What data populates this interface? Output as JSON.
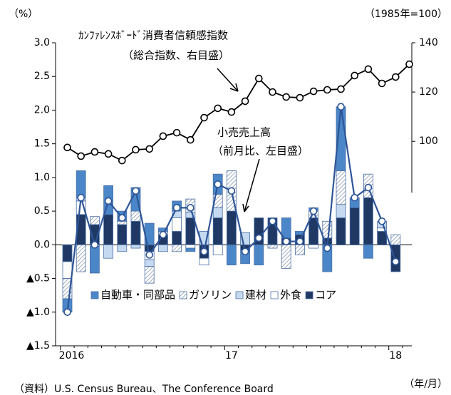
{
  "chart_data": {
    "type": "bar_line",
    "left_unit": "（%）",
    "right_unit": "（1985年=100）",
    "x_unit": "（年/月）",
    "source": "（資料）U.S. Census Bureau、The Conference Board",
    "annotations": [
      "ｶﾝﾌｧﾚﾝｽﾎﾞｰﾄﾞ消費者信頼感指数",
      "（総合指数、右目盛）",
      "小売売上高",
      "（前月比、左目盛）"
    ],
    "categories": [
      "2016",
      null,
      null,
      null,
      null,
      null,
      null,
      null,
      null,
      null,
      null,
      null,
      "17",
      null,
      null,
      null,
      null,
      null,
      null,
      null,
      null,
      null,
      null,
      null,
      "18",
      null
    ],
    "ylim": [
      -1.5,
      3.0
    ],
    "yticks": [
      {
        "value": -1.5,
        "label": "▲1.5"
      },
      {
        "value": -1.0,
        "label": "▲1.0"
      },
      {
        "value": -0.5,
        "label": "▲0.5"
      },
      {
        "value": 0,
        "label": "0.0"
      },
      0.5,
      {
        "value": 1.0,
        "label": "1.0"
      },
      1.5,
      {
        "value": 2.0,
        "label": "2.0"
      },
      2.5,
      {
        "value": 3.0,
        "label": "3.0"
      }
    ],
    "y2lim": [
      17,
      140
    ],
    "y2ticks": [
      100,
      120,
      140
    ],
    "legend": "bottom",
    "series": [
      {
        "name": "コア",
        "color": "#1f3864",
        "kind": "bar",
        "values": [
          -0.25,
          0.45,
          0.3,
          0.45,
          0.3,
          0.35,
          -0.1,
          0.15,
          0.2,
          0.4,
          -0.2,
          0.4,
          0.5,
          -0.08,
          0.4,
          0.4,
          0.1,
          0.15,
          0.4,
          0.1,
          0.4,
          0.55,
          0.7,
          0.2,
          -0.4,
          null
        ]
      },
      {
        "name": "外食",
        "color": "#ffffff",
        "kind": "bar",
        "values": [
          -0.25,
          0.2,
          0,
          0,
          0,
          0,
          -0.12,
          0,
          0.2,
          -0.05,
          -0.1,
          -0.15,
          0,
          0,
          0,
          0,
          0,
          0,
          -0.05,
          0,
          0,
          0,
          0,
          0.05,
          0,
          null
        ]
      },
      {
        "name": "建材",
        "color": "#c5d9f0",
        "kind": "bar",
        "values": [
          0,
          0.05,
          -0.02,
          -0.2,
          -0.1,
          -0.05,
          -0.1,
          -0.1,
          0.1,
          0.08,
          0.2,
          0.15,
          0,
          0.18,
          0,
          0,
          0,
          0,
          0,
          0,
          0.2,
          0,
          0,
          0.1,
          0,
          null
        ]
      },
      {
        "name": "ガソリン",
        "color": "hatch",
        "kind": "bar",
        "values": [
          -0.3,
          -0.4,
          0.12,
          0,
          0.05,
          0.15,
          -0.25,
          0.05,
          -0.1,
          0.2,
          0,
          0.2,
          0.6,
          0,
          0,
          -0.05,
          -0.35,
          -0.15,
          0.1,
          0.25,
          0.5,
          0,
          0.35,
          0,
          0.15,
          null
        ]
      },
      {
        "name": "自動車・同部品",
        "color": "#4a86c8",
        "kind": "bar",
        "values": [
          -0.2,
          0.4,
          -0.4,
          0.43,
          0.15,
          0.35,
          0.32,
          0.05,
          0.15,
          -0.05,
          0,
          0.3,
          -0.3,
          -0.2,
          -0.3,
          0,
          0.3,
          0.05,
          0.05,
          -0.4,
          0.95,
          0.15,
          -0.2,
          0,
          0,
          null
        ]
      },
      {
        "name": "小売売上高",
        "color": "#2e5597",
        "kind": "line",
        "values": [
          -1.0,
          0.7,
          0.0,
          0.65,
          0.4,
          0.8,
          -0.15,
          0.15,
          0.55,
          0.55,
          -0.1,
          0.9,
          0.8,
          -0.1,
          0.1,
          0.35,
          0.05,
          0.05,
          0.5,
          -0.05,
          2.05,
          0.7,
          0.85,
          0.35,
          -0.25,
          null
        ]
      },
      {
        "name": "消費者信頼感指数",
        "color": "#000000",
        "kind": "line",
        "axis": "y2",
        "values": [
          97.5,
          94.0,
          95.7,
          94.9,
          92.2,
          96.6,
          96.9,
          102.1,
          103.5,
          100.6,
          109.6,
          113.4,
          111.9,
          116.3,
          125.5,
          120.0,
          118.0,
          117.7,
          120.3,
          120.9,
          121.2,
          126.7,
          129.3,
          123.5,
          126.1,
          131.3
        ]
      }
    ]
  }
}
